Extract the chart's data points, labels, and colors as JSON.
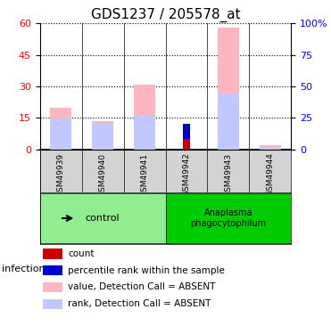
{
  "title": "GDS1237 / 205578_at",
  "samples": [
    "GSM49939",
    "GSM49940",
    "GSM49941",
    "GSM49942",
    "GSM49943",
    "GSM49944"
  ],
  "infection_label": "infection",
  "value_absent": [
    20.0,
    13.5,
    31.0,
    0.0,
    58.0,
    2.0
  ],
  "rank_absent": [
    14.5,
    12.5,
    16.0,
    0.0,
    26.5,
    0.5
  ],
  "count": [
    0.0,
    0.0,
    0.0,
    5.0,
    0.0,
    0.0
  ],
  "percentile_rank": [
    0.0,
    0.0,
    0.0,
    7.0,
    0.0,
    0.0
  ],
  "ylim_left": [
    0,
    60
  ],
  "ylim_right": [
    0,
    100
  ],
  "yticks_left": [
    0,
    15,
    30,
    45,
    60
  ],
  "yticks_right": [
    0,
    25,
    50,
    75,
    100
  ],
  "ytick_labels_right": [
    "0",
    "25",
    "50",
    "75",
    "100%"
  ],
  "color_value_absent": "#ffb6c1",
  "color_rank_absent": "#c0c8ff",
  "color_count": "#cc0000",
  "color_percentile": "#0000cc",
  "bar_width": 0.5,
  "group_label_color_control": "#90ee90",
  "group_label_color_anaplasma": "#00cc00",
  "title_fontsize": 11,
  "tick_fontsize": 8,
  "legend_fontsize": 7.5
}
